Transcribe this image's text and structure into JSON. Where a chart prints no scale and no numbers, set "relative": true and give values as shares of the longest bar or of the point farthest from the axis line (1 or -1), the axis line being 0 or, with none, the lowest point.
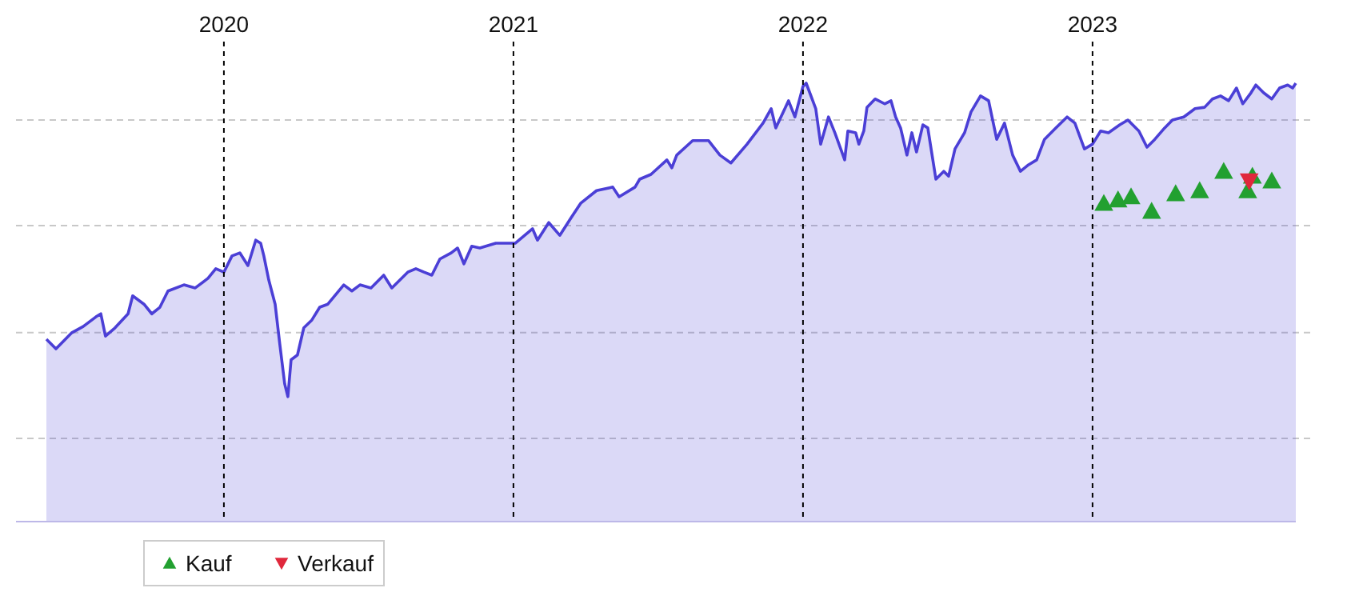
{
  "chart_data": {
    "type": "area",
    "relative": true,
    "xlim": [
      2019.282,
      2023.702
    ],
    "xticks": [
      2020,
      2021,
      2022,
      2023
    ],
    "grid": "x",
    "legend": "bottom left",
    "ref_lines": [
      {
        "axis": "y",
        "value": 0.916,
        "color": "#c8c8c8",
        "line_style": "dashed"
      },
      {
        "axis": "y",
        "value": 0.675,
        "color": "#c8c8c8",
        "line_style": "dashed"
      },
      {
        "axis": "y",
        "value": 0.431,
        "color": "#c8c8c8",
        "line_style": "dashed"
      },
      {
        "axis": "y",
        "value": 0.19,
        "color": "#c8c8c8",
        "line_style": "dashed"
      }
    ],
    "series": [
      {
        "color": "#4b3fd6",
        "x": [
          2019.387,
          2019.42,
          2019.475,
          2019.514,
          2019.558,
          2019.575,
          2019.591,
          2019.624,
          2019.669,
          2019.685,
          2019.724,
          2019.751,
          2019.779,
          2019.807,
          2019.862,
          2019.901,
          2019.945,
          2019.972,
          2020.0,
          2020.028,
          2020.055,
          2020.083,
          2020.11,
          2020.127,
          2020.138,
          2020.155,
          2020.177,
          2020.193,
          2020.21,
          2020.221,
          2020.232,
          2020.254,
          2020.276,
          2020.304,
          2020.331,
          2020.359,
          2020.414,
          2020.442,
          2020.47,
          2020.508,
          2020.552,
          2020.58,
          2020.635,
          2020.663,
          2020.691,
          2020.718,
          2020.746,
          2020.785,
          2020.807,
          2020.829,
          2020.856,
          2020.884,
          2020.939,
          2021.006,
          2021.066,
          2021.083,
          2021.122,
          2021.16,
          2021.199,
          2021.232,
          2021.287,
          2021.343,
          2021.365,
          2021.42,
          2021.436,
          2021.475,
          2021.53,
          2021.547,
          2021.564,
          2021.619,
          2021.674,
          2021.713,
          2021.751,
          2021.807,
          2021.862,
          2021.89,
          2021.906,
          2021.95,
          2021.972,
          2022.0,
          2022.011,
          2022.044,
          2022.061,
          2022.088,
          2022.11,
          2022.144,
          2022.155,
          2022.182,
          2022.193,
          2022.21,
          2022.221,
          2022.249,
          2022.282,
          2022.304,
          2022.32,
          2022.337,
          2022.359,
          2022.376,
          2022.392,
          2022.414,
          2022.431,
          2022.459,
          2022.486,
          2022.503,
          2022.525,
          2022.558,
          2022.58,
          2022.613,
          2022.641,
          2022.669,
          2022.696,
          2022.724,
          2022.751,
          2022.779,
          2022.807,
          2022.834,
          2022.873,
          2022.912,
          2022.939,
          2022.972,
          2023.0,
          2023.028,
          2023.055,
          2023.094,
          2023.122,
          2023.16,
          2023.188,
          2023.215,
          2023.249,
          2023.276,
          2023.315,
          2023.354,
          2023.387,
          2023.414,
          2023.442,
          2023.47,
          2023.497,
          2023.519,
          2023.547,
          2023.564,
          2023.591,
          2023.619,
          2023.646,
          2023.674,
          2023.691,
          2023.702
        ],
        "values": [
          0.416,
          0.394,
          0.431,
          0.445,
          0.467,
          0.474,
          0.423,
          0.442,
          0.474,
          0.515,
          0.496,
          0.474,
          0.489,
          0.526,
          0.54,
          0.533,
          0.555,
          0.577,
          0.569,
          0.606,
          0.613,
          0.584,
          0.642,
          0.635,
          0.606,
          0.551,
          0.496,
          0.405,
          0.314,
          0.285,
          0.369,
          0.38,
          0.442,
          0.46,
          0.489,
          0.496,
          0.54,
          0.526,
          0.54,
          0.533,
          0.562,
          0.533,
          0.569,
          0.577,
          0.569,
          0.562,
          0.599,
          0.613,
          0.624,
          0.588,
          0.628,
          0.624,
          0.635,
          0.635,
          0.668,
          0.642,
          0.682,
          0.653,
          0.693,
          0.726,
          0.755,
          0.763,
          0.741,
          0.763,
          0.781,
          0.792,
          0.825,
          0.807,
          0.836,
          0.869,
          0.869,
          0.836,
          0.818,
          0.861,
          0.909,
          0.942,
          0.898,
          0.96,
          0.923,
          0.993,
          1.0,
          0.942,
          0.861,
          0.923,
          0.887,
          0.825,
          0.891,
          0.887,
          0.861,
          0.891,
          0.945,
          0.964,
          0.953,
          0.96,
          0.923,
          0.898,
          0.836,
          0.887,
          0.843,
          0.905,
          0.898,
          0.781,
          0.799,
          0.788,
          0.85,
          0.887,
          0.934,
          0.971,
          0.96,
          0.872,
          0.909,
          0.836,
          0.799,
          0.814,
          0.825,
          0.872,
          0.898,
          0.923,
          0.909,
          0.85,
          0.861,
          0.891,
          0.887,
          0.905,
          0.916,
          0.891,
          0.854,
          0.872,
          0.898,
          0.916,
          0.923,
          0.942,
          0.945,
          0.964,
          0.971,
          0.96,
          0.989,
          0.953,
          0.978,
          0.996,
          0.978,
          0.964,
          0.989,
          0.996,
          0.989,
          1.0
        ]
      },
      {
        "type": "scatter",
        "name": "Kauf",
        "color": "#22a030",
        "marker": "triangle",
        "x": [
          2023.039,
          2023.088,
          2023.133,
          2023.204,
          2023.287,
          2023.37,
          2023.453,
          2023.536,
          2023.552,
          2023.619
        ],
        "values": [
          0.726,
          0.734,
          0.741,
          0.708,
          0.748,
          0.755,
          0.799,
          0.755,
          0.788,
          0.777
        ]
      },
      {
        "type": "scatter",
        "name": "Verkauf",
        "color": "#e0283c",
        "x": [
          2023.541
        ],
        "values": [
          0.777
        ]
      }
    ]
  }
}
